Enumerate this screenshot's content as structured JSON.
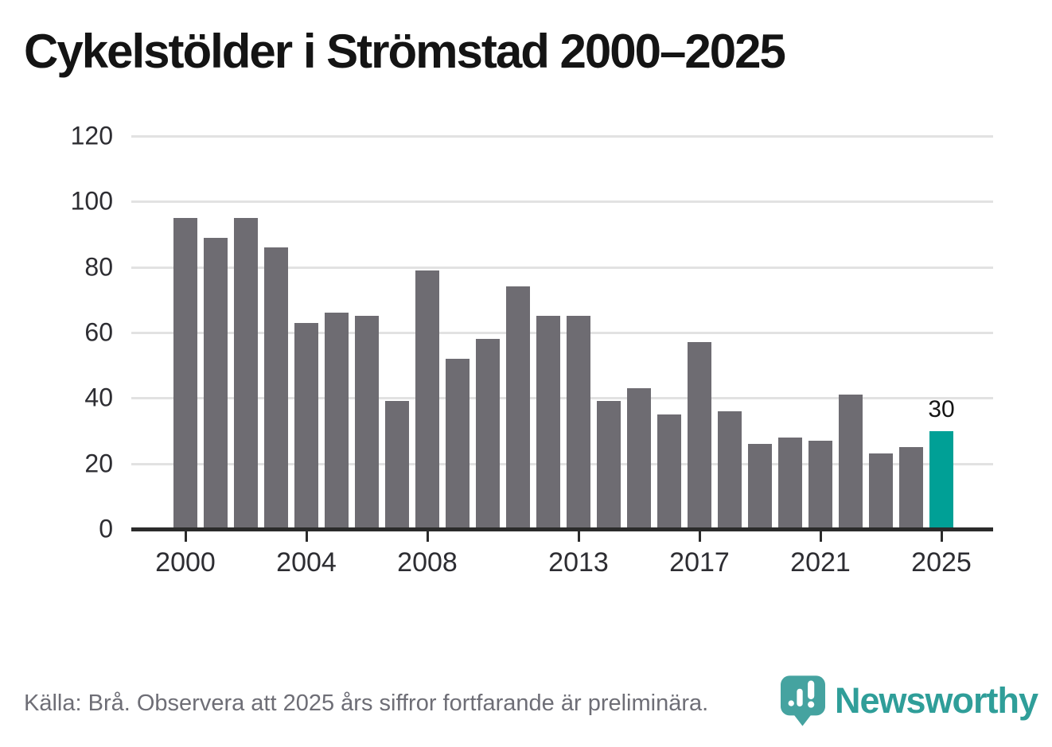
{
  "title": "Cykelstölder i Strömstad 2000–2025",
  "chart_data": {
    "type": "bar",
    "categories": [
      2000,
      2001,
      2002,
      2003,
      2004,
      2005,
      2006,
      2007,
      2008,
      2009,
      2010,
      2011,
      2012,
      2013,
      2014,
      2015,
      2016,
      2017,
      2018,
      2019,
      2020,
      2021,
      2022,
      2023,
      2024,
      2025
    ],
    "values": [
      95,
      89,
      95,
      86,
      63,
      66,
      65,
      39,
      79,
      52,
      58,
      74,
      65,
      65,
      39,
      43,
      35,
      57,
      36,
      26,
      28,
      27,
      41,
      23,
      25,
      30
    ],
    "title": "Cykelstölder i Strömstad 2000–2025",
    "xlabel": "",
    "ylabel": "",
    "ylim": [
      0,
      120
    ],
    "y_ticks": [
      0,
      20,
      40,
      60,
      80,
      100,
      120
    ],
    "x_tick_years": [
      2000,
      2004,
      2008,
      2013,
      2017,
      2021,
      2025
    ],
    "grid": true,
    "legend": "none",
    "bar_color": "#6e6c72",
    "highlight": {
      "year": 2025,
      "value_label": "30",
      "color": "#00a096"
    }
  },
  "footer": {
    "source_note": "Källa: Brå. Observera att 2025 års siffror fortfarande är preliminära."
  },
  "branding": {
    "wordmark": "Newsworthy",
    "logo_icon": "newsworthy-pin-chart-icon",
    "brand_color": "#2f9e99",
    "pin_color": "#45a3a0"
  }
}
